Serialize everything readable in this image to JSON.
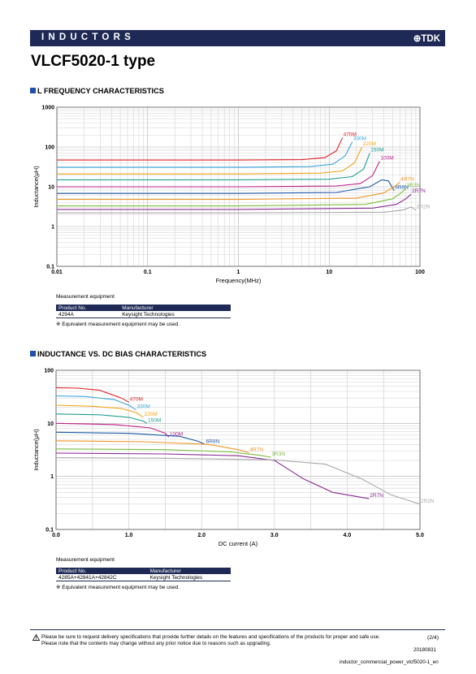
{
  "header": {
    "category": "INDUCTORS",
    "brand": "TDK"
  },
  "title": "VLCF5020-1 type",
  "section1": {
    "title": "L FREQUENCY CHARACTERISTICS",
    "measurement": {
      "label": "Measurement equipment",
      "columns": [
        "Product No.",
        "Manufacturer"
      ],
      "rows": [
        [
          "4294A",
          "Keysight Technologies"
        ]
      ],
      "note": "※ Equivalent measurement equipment may be used."
    }
  },
  "section2": {
    "title": "INDUCTANCE VS. DC BIAS CHARACTERISTICS",
    "measurement": {
      "label": "Measurement equipment",
      "columns": [
        "Product No.",
        "Manufacturer"
      ],
      "rows": [
        [
          "4285A+42841A+42842C",
          "Keysight Technologies"
        ]
      ],
      "note": "※ Equivalent measurement equipment may be used."
    }
  },
  "footer": {
    "notice1": "Please be sure to request delivery specifications that provide further details on the features and specifications of the products for proper and safe use.",
    "notice2": "Please note that the contents may change without any prior notice due to reasons such as upgrading.",
    "page": "(2/4)",
    "date": "20180831",
    "doc": "inductor_commercial_power_vlcf5020-1_en"
  },
  "chart_data": [
    {
      "type": "line",
      "xlabel": "Frequency(MHz)",
      "ylabel": "Inductance(μH)",
      "xscale": "log",
      "yscale": "log",
      "xlim": [
        0.01,
        100
      ],
      "ylim": [
        0.1,
        1000
      ],
      "xticks": [
        "0.01",
        "0.1",
        "1",
        "10",
        "100"
      ],
      "yticks": [
        "0.1",
        "1",
        "10",
        "100",
        "1000"
      ],
      "grid": true,
      "series": [
        {
          "name": "470M",
          "color": "#e0202a",
          "x": [
            0.01,
            1,
            5,
            9,
            12,
            14
          ],
          "y": [
            47,
            47,
            48,
            54,
            80,
            170
          ]
        },
        {
          "name": "330M",
          "color": "#3aa6dc",
          "x": [
            0.01,
            1,
            6,
            11,
            15,
            18
          ],
          "y": [
            31,
            31,
            32,
            37,
            60,
            135
          ]
        },
        {
          "name": "220M",
          "color": "#f2a51c",
          "x": [
            0.01,
            1,
            8,
            14,
            19,
            23
          ],
          "y": [
            21,
            21,
            22,
            25,
            40,
            100
          ]
        },
        {
          "name": "150M",
          "color": "#20a090",
          "x": [
            0.01,
            1,
            10,
            18,
            24,
            28
          ],
          "y": [
            15,
            15,
            15.5,
            18,
            28,
            70
          ]
        },
        {
          "name": "100M",
          "color": "#c0208a",
          "x": [
            0.01,
            1,
            12,
            22,
            30,
            36
          ],
          "y": [
            10,
            10,
            10.5,
            12,
            19,
            44
          ]
        },
        {
          "name": "6R8N",
          "color": "#1e5aa8",
          "x": [
            0.01,
            1,
            12,
            28,
            38,
            45,
            52
          ],
          "y": [
            6.8,
            6.8,
            7.2,
            10,
            15,
            14,
            8
          ]
        },
        {
          "name": "4R7N",
          "color": "#f0962a",
          "x": [
            0.01,
            1,
            20,
            40,
            52,
            60
          ],
          "y": [
            4.8,
            4.8,
            5.2,
            7,
            10,
            13
          ]
        },
        {
          "name": "3R3N",
          "color": "#7cbc3c",
          "x": [
            0.01,
            1,
            25,
            50,
            62,
            70
          ],
          "y": [
            3.3,
            3.3,
            3.6,
            5,
            7,
            9
          ]
        },
        {
          "name": "2R7N",
          "color": "#8a2a92",
          "x": [
            0.01,
            1,
            30,
            55,
            70,
            80
          ],
          "y": [
            2.7,
            2.7,
            2.9,
            3.6,
            5,
            6.5
          ]
        },
        {
          "name": "2R2N",
          "color": "#a8a8a8",
          "x": [
            0.01,
            1,
            40,
            65,
            80,
            90
          ],
          "y": [
            2.2,
            2.2,
            2.3,
            2.6,
            3.1,
            2.6
          ]
        }
      ]
    },
    {
      "type": "line",
      "xlabel": "DC current (A)",
      "ylabel": "Inductance(μH)",
      "xscale": "linear",
      "yscale": "log",
      "xlim": [
        0,
        5
      ],
      "ylim": [
        0.1,
        100
      ],
      "xticks": [
        "0.0",
        "1.0",
        "2.0",
        "3.0",
        "4.0",
        "5.0"
      ],
      "yticks": [
        "0.1",
        "1",
        "10",
        "100"
      ],
      "grid": true,
      "series": [
        {
          "name": "470M",
          "color": "#e0202a",
          "x": [
            0,
            0.3,
            0.6,
            0.9,
            1.0
          ],
          "y": [
            47,
            46,
            42,
            30,
            25
          ]
        },
        {
          "name": "330M",
          "color": "#3aa6dc",
          "x": [
            0,
            0.4,
            0.8,
            1.0,
            1.1
          ],
          "y": [
            33,
            32,
            28,
            22,
            18
          ]
        },
        {
          "name": "220M",
          "color": "#f2a51c",
          "x": [
            0,
            0.5,
            0.9,
            1.1,
            1.2
          ],
          "y": [
            22,
            21,
            19,
            16,
            13
          ]
        },
        {
          "name": "150M",
          "color": "#20a090",
          "x": [
            0,
            0.6,
            1.0,
            1.2,
            1.25
          ],
          "y": [
            15,
            14.5,
            13,
            11,
            10
          ]
        },
        {
          "name": "100M",
          "color": "#c0208a",
          "x": [
            0,
            0.8,
            1.3,
            1.5,
            1.55
          ],
          "y": [
            10,
            9.5,
            8.2,
            6.5,
            5.5
          ]
        },
        {
          "name": "6R8N",
          "color": "#1e5aa8",
          "x": [
            0,
            1.0,
            1.7,
            1.95,
            2.05
          ],
          "y": [
            6.8,
            6.5,
            5.7,
            4.6,
            4.0
          ]
        },
        {
          "name": "4R7N",
          "color": "#f0962a",
          "x": [
            0,
            1.2,
            2.1,
            2.5,
            2.65
          ],
          "y": [
            4.7,
            4.5,
            4.0,
            3.2,
            2.8
          ]
        },
        {
          "name": "3R3N",
          "color": "#7cbc3c",
          "x": [
            0,
            1.5,
            2.4,
            2.8,
            2.95
          ],
          "y": [
            3.3,
            3.2,
            2.9,
            2.5,
            2.3
          ]
        },
        {
          "name": "2R7N",
          "color": "#8a2a92",
          "x": [
            0,
            1.5,
            2.5,
            3.0,
            3.4,
            3.8,
            4.3
          ],
          "y": [
            2.75,
            2.65,
            2.45,
            2.0,
            0.9,
            0.5,
            0.38
          ]
        },
        {
          "name": "2R2N",
          "color": "#a8a8a8",
          "x": [
            0,
            1.5,
            3.0,
            3.7,
            4.2,
            4.6,
            5.0
          ],
          "y": [
            2.25,
            2.2,
            2.05,
            1.7,
            0.9,
            0.45,
            0.3
          ]
        }
      ]
    }
  ]
}
